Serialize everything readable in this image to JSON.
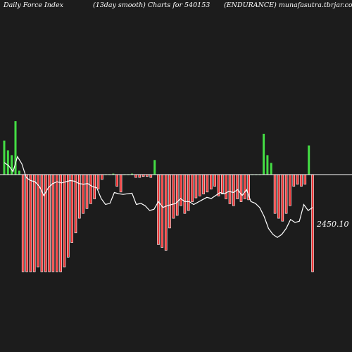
{
  "header": {
    "left": "Daily Force  Index",
    "center": "(13day smooth) Charts for 540153",
    "right": "(ENDURANCE) munafasutra.tbrjar.com"
  },
  "colors": {
    "background": "#1c1c1c",
    "positive": "#44dd44",
    "negative": "#ee3333",
    "bar_edge": "#ffffff",
    "baseline": "#ffffff",
    "price_line": "#ffffff"
  },
  "chart_data": {
    "type": "bar",
    "title": "Daily Force Index (13day smooth) Charts for 540153 (ENDURANCE)",
    "price_label": "2450.10",
    "ylim": [
      -100,
      55
    ],
    "bars": [
      35,
      25,
      20,
      55,
      4,
      -100,
      -100,
      -100,
      -100,
      -95,
      -100,
      -100,
      -100,
      -100,
      -100,
      -100,
      -95,
      -85,
      -70,
      -60,
      -45,
      -40,
      -35,
      -30,
      -25,
      -15,
      -5,
      0,
      0,
      1,
      -12,
      -18,
      0,
      0,
      1,
      -3,
      -3,
      -2,
      -2,
      -3,
      15,
      -72,
      -75,
      -78,
      -55,
      -45,
      -42,
      -32,
      -40,
      -37,
      -28,
      -24,
      -22,
      -20,
      -18,
      -15,
      -12,
      -22,
      -20,
      -25,
      -30,
      -32,
      -25,
      -28,
      -25,
      -26,
      0,
      0,
      0,
      42,
      20,
      12,
      -40,
      -45,
      -48,
      -40,
      -32,
      -12,
      -10,
      -12,
      -10,
      30,
      -100
    ],
    "price_line": [
      0.2,
      0.15,
      0.05,
      0.3,
      0.18,
      -0.05,
      -0.1,
      -0.12,
      -0.2,
      -0.35,
      -0.22,
      -0.15,
      -0.12,
      -0.14,
      -0.12,
      -0.1,
      -0.11,
      -0.15,
      -0.16,
      -0.15,
      -0.2,
      -0.22,
      -0.4,
      -0.5,
      -0.48,
      -0.3,
      -0.32,
      -0.33,
      -0.32,
      -0.31,
      -0.5,
      -0.48,
      -0.52,
      -0.6,
      -0.58,
      -0.45,
      -0.55,
      -0.52,
      -0.5,
      -0.48,
      -0.4,
      -0.45,
      -0.45,
      -0.5,
      -0.46,
      -0.42,
      -0.38,
      -0.4,
      -0.35,
      -0.3,
      -0.32,
      -0.28,
      -0.3,
      -0.25,
      -0.35,
      -0.25,
      -0.45,
      -0.48,
      -0.55,
      -0.7,
      -0.9,
      -1.0,
      -1.05,
      -1.0,
      -0.9,
      -0.75,
      -0.8,
      -0.78,
      -0.5,
      -0.6,
      -0.55
    ]
  }
}
